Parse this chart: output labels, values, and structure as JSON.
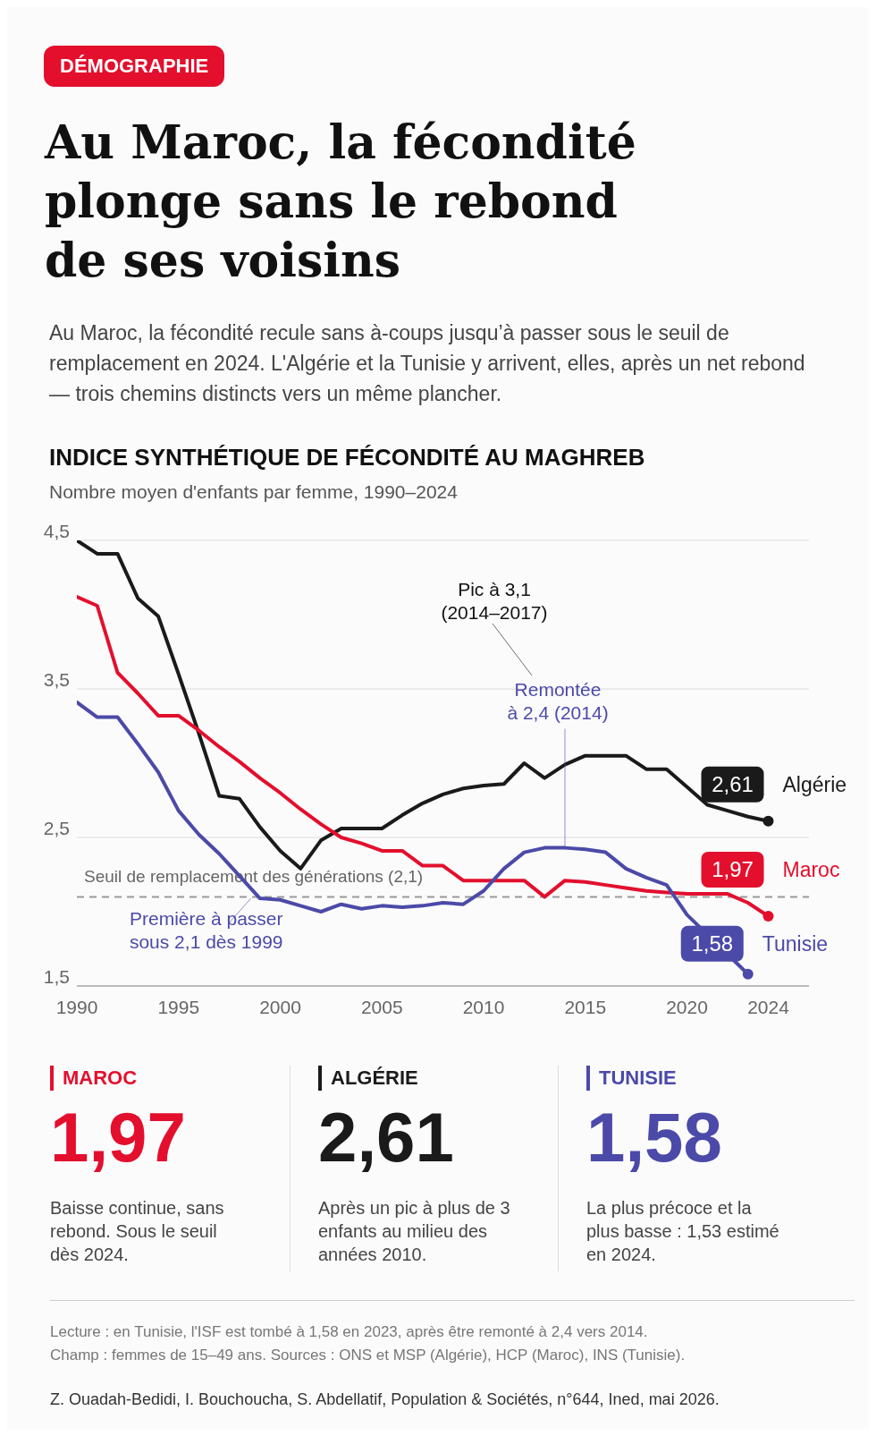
{
  "chart_data": [
    {
      "type": "line",
      "title": "Au Maroc, la fécondité plonge sans le rebond de ses voisins",
      "subtitle": "Au Maroc, la fécondité recule sans à-coups jusqu’à passer sous le seuil de remplacement en 2024. L'Algérie et la Tunisie y arrivent, elles, après un net rebond — trois chemins distincts vers un même plancher.",
      "annotations": [
        "DÉMOGRAPHIE",
        "INDICE SYNTHÉTIQUE DE FÉCONDITÉ AU MAGHREB",
        "Nombre moyen d'enfants par femme, 1990–2024",
        "Pic à 3,1\n(2014–2017)",
        {
          "text": "Remontée\nà 2,4 (2014)",
          "x": 2014,
          "y": 2.43
        },
        {
          "text": "Première à passer\nsous 2,1 dès 1999",
          "x": 1999,
          "y": 2.09
        },
        "Lecture : en Tunisie, l'ISF est tombé à 1,58 en 2023, après être remonté à 2,4 vers 2014.",
        "Champ : femmes de 15–49 ans. Sources : ONS et MSP (Algérie), HCP (Maroc), INS (Tunisie).",
        "Z. Ouadah-Bedidi, I. Bouchoucha, S. Abdellatif, Population & Sociétés, n°644, Ined, mai 2026."
      ],
      "x": [
        1990,
        1991,
        1992,
        1993,
        1994,
        1995,
        1996,
        1997,
        1998,
        1999,
        2000,
        2001,
        2002,
        2003,
        2004,
        2005,
        2006,
        2007,
        2008,
        2009,
        2010,
        2011,
        2012,
        2013,
        2014,
        2015,
        2016,
        2017,
        2018,
        2019,
        2020,
        2021,
        2022,
        2023,
        2024
      ],
      "series": [
        {
          "name": "Algérie",
          "color": "#1a1a1a",
          "values": [
            4.5,
            4.41,
            4.41,
            4.11,
            3.99,
            3.6,
            3.2,
            2.78,
            2.76,
            2.57,
            2.41,
            2.29,
            2.48,
            2.56,
            2.56,
            2.56,
            2.65,
            2.73,
            2.79,
            2.83,
            2.85,
            2.86,
            3.0,
            2.9,
            2.99,
            3.05,
            3.05,
            3.05,
            2.96,
            2.96,
            2.84,
            2.72,
            2.68,
            2.64,
            2.61
          ],
          "value_labels": [
            null,
            null,
            null,
            null,
            null,
            null,
            null,
            null,
            null,
            null,
            null,
            null,
            null,
            null,
            null,
            null,
            null,
            null,
            null,
            null,
            null,
            null,
            null,
            null,
            null,
            null,
            null,
            null,
            null,
            null,
            null,
            null,
            null,
            null,
            "2,61"
          ]
        },
        {
          "name": "Maroc",
          "color": "#e30f2d",
          "values": [
            4.12,
            4.06,
            3.61,
            3.47,
            3.32,
            3.32,
            3.22,
            3.11,
            3.01,
            2.9,
            2.8,
            2.69,
            2.59,
            2.5,
            2.46,
            2.41,
            2.41,
            2.31,
            2.31,
            2.21,
            2.21,
            2.21,
            2.21,
            2.1,
            2.21,
            2.2,
            2.18,
            2.16,
            2.14,
            2.13,
            2.12,
            2.12,
            2.12,
            2.06,
            1.97
          ],
          "value_labels": [
            null,
            null,
            null,
            null,
            null,
            null,
            null,
            null,
            null,
            null,
            null,
            null,
            null,
            null,
            null,
            null,
            null,
            null,
            null,
            null,
            null,
            null,
            null,
            null,
            null,
            null,
            null,
            null,
            null,
            null,
            null,
            null,
            null,
            null,
            "1,97"
          ]
        },
        {
          "name": "Tunisie",
          "color": "#4b4aa8",
          "values": [
            3.41,
            3.31,
            3.31,
            3.13,
            2.94,
            2.68,
            2.52,
            2.39,
            2.24,
            2.09,
            2.08,
            2.04,
            2.0,
            2.05,
            2.02,
            2.04,
            2.03,
            2.04,
            2.06,
            2.05,
            2.14,
            2.29,
            2.4,
            2.43,
            2.43,
            2.42,
            2.4,
            2.29,
            2.23,
            2.18,
            1.98,
            null,
            null,
            1.58,
            null
          ],
          "value_labels": [
            null,
            null,
            null,
            null,
            null,
            null,
            null,
            null,
            null,
            null,
            null,
            null,
            null,
            null,
            null,
            null,
            null,
            null,
            null,
            null,
            null,
            null,
            null,
            null,
            null,
            null,
            null,
            null,
            null,
            null,
            null,
            null,
            null,
            "1,58",
            null
          ]
        }
      ],
      "xlim": [
        1990,
        2026
      ],
      "xticks": [
        1990,
        1995,
        2000,
        2005,
        2010,
        2015,
        2020,
        2024
      ],
      "ylim": [
        1.5,
        4.5
      ],
      "yticks": [
        {
          "value": 1.5,
          "label": "1,5"
        },
        {
          "value": 2.5,
          "label": "2,5"
        },
        {
          "value": 3.5,
          "label": "3,5"
        },
        {
          "value": 4.5,
          "label": "4,5"
        }
      ],
      "grid": "y",
      "legend": "right",
      "ref_lines": [
        {
          "axis": "y",
          "value": 2.1,
          "label": "Seuil de remplacement des générations (2,1)",
          "color": "#9a9a9a",
          "line_style": "dashed"
        }
      ]
    },
    {
      "type": "other",
      "categories": [
        "MAROC",
        "ALGÉRIE",
        "TUNISIE"
      ],
      "colors": [
        "#e30f2d",
        "#1a1a1a",
        "#4b4aa8"
      ],
      "annotations": [
        "1,97",
        "2,61",
        "1,58",
        "Baisse continue, sans rebond. Sous le seuil dès 2024.",
        "Après un pic à plus de 3 enfants au milieu des années 2010.",
        "La plus précoce et la plus basse : 1,53 estimé en 2024."
      ]
    }
  ]
}
